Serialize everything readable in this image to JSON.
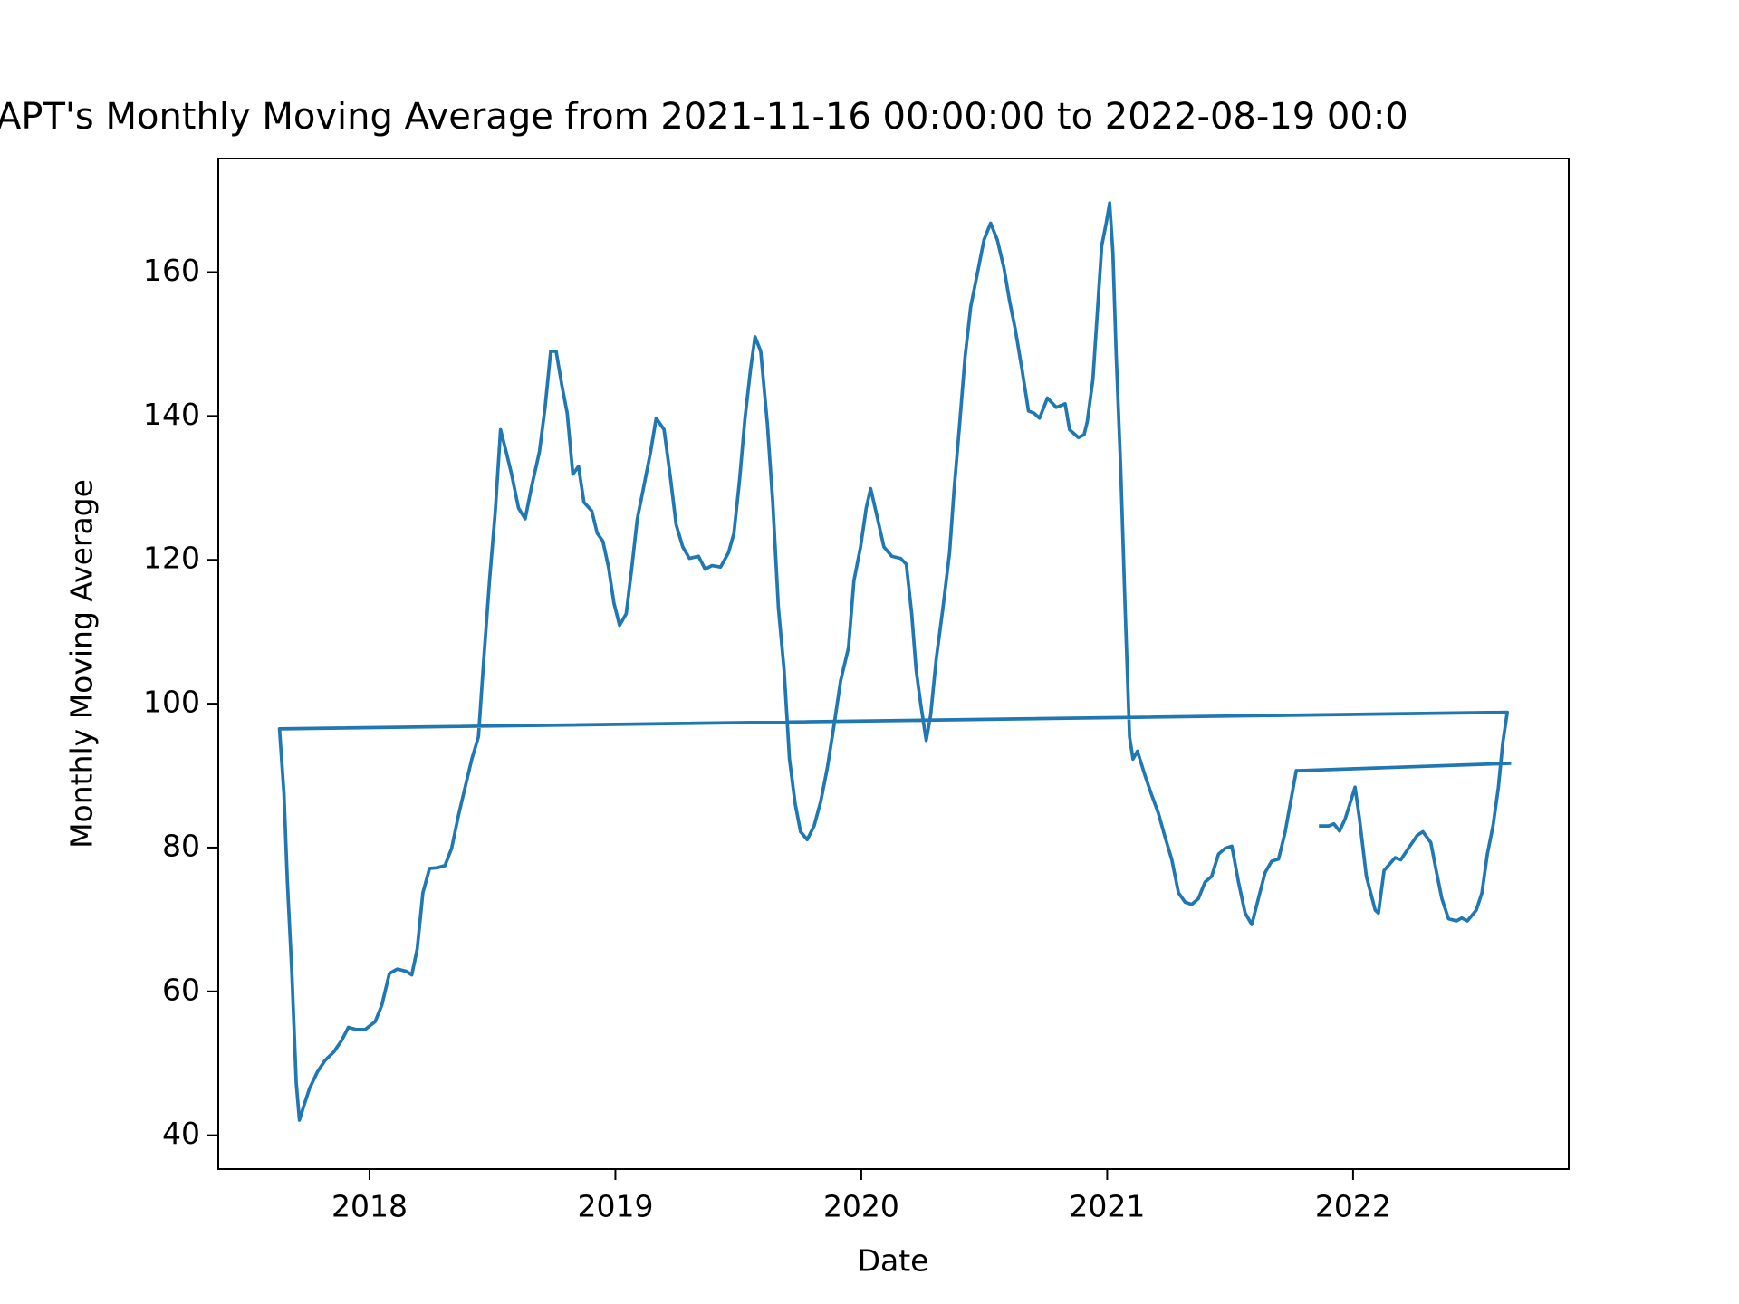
{
  "chart_data": {
    "type": "line",
    "title": "APT's Monthly Moving Average from 2021-11-16 00:00:00 to 2022-08-19 00:0",
    "xlabel": "Date",
    "ylabel": "Monthly Moving Average",
    "color": "#1f77b4",
    "x": [
      2021.868,
      2021.9,
      2021.922,
      2021.945,
      2021.968,
      2021.99,
      2022.008,
      2022.026,
      2022.054,
      2022.09,
      2022.103,
      2022.126,
      2022.171,
      2022.194,
      2022.225,
      2022.261,
      2022.284,
      2022.316,
      2022.338,
      2022.361,
      2022.388,
      2022.42,
      2022.442,
      2022.465,
      2022.501,
      2022.524,
      2022.546,
      2022.569,
      2022.591,
      2022.609,
      2022.627,
      2017.634,
      2017.652,
      2017.666,
      2017.684,
      2017.702,
      2017.715,
      2017.733,
      2017.756,
      2017.788,
      2017.819,
      2017.855,
      2017.887,
      2017.914,
      2017.946,
      2017.982,
      2018.023,
      2018.05,
      2018.081,
      2018.113,
      2018.149,
      2018.172,
      2018.194,
      2018.217,
      2018.244,
      2018.276,
      2018.307,
      2018.334,
      2018.362,
      2018.389,
      2018.416,
      2018.443,
      2018.465,
      2018.488,
      2018.511,
      2018.533,
      2018.556,
      2018.578,
      2018.606,
      2018.633,
      2018.66,
      2018.691,
      2018.714,
      2018.737,
      2018.759,
      2018.782,
      2018.804,
      2018.827,
      2018.85,
      2018.872,
      2018.904,
      2018.926,
      2018.949,
      2018.972,
      2018.994,
      2019.017,
      2019.044,
      2019.066,
      2019.089,
      2019.112,
      2019.143,
      2019.166,
      2019.198,
      2019.225,
      2019.247,
      2019.274,
      2019.301,
      2019.338,
      2019.365,
      2019.392,
      2019.428,
      2019.46,
      2019.482,
      2019.505,
      2019.527,
      2019.55,
      2019.568,
      2019.591,
      2019.618,
      2019.64,
      2019.663,
      2019.686,
      2019.708,
      2019.731,
      2019.753,
      2019.78,
      2019.808,
      2019.835,
      2019.862,
      2019.889,
      2019.916,
      2019.948,
      2019.97,
      2019.997,
      2020.02,
      2020.038,
      2020.061,
      2020.092,
      2020.124,
      2020.16,
      2020.183,
      2020.205,
      2020.223,
      2020.241,
      2020.264,
      2020.282,
      2020.305,
      2020.332,
      2020.359,
      2020.377,
      2020.4,
      2020.422,
      2020.445,
      2020.472,
      2020.499,
      2020.526,
      2020.553,
      2020.58,
      2020.603,
      2020.626,
      2020.653,
      2020.68,
      2020.702,
      2020.725,
      2020.757,
      2020.793,
      2020.829,
      2020.847,
      2020.883,
      2020.906,
      2020.919,
      2020.942,
      2020.96,
      2020.978,
      2020.996,
      2021.01,
      2021.023,
      2021.037,
      2021.055,
      2021.073,
      2021.091,
      2021.105,
      2021.123,
      2021.154,
      2021.181,
      2021.208,
      2021.236,
      2021.263,
      2021.29,
      2021.317,
      2021.344,
      2021.371,
      2021.398,
      2021.425,
      2021.453,
      2021.48,
      2021.507,
      2021.534,
      2021.561,
      2021.588,
      2021.615,
      2021.642,
      2021.669,
      2021.697,
      2021.724,
      2021.751,
      2021.769,
      2021.787,
      2022.636
    ],
    "values": [
      83,
      83,
      83.3,
      82.3,
      84,
      86.4,
      88.4,
      84,
      76,
      71.3,
      70.9,
      76.8,
      78.6,
      78.3,
      79.9,
      81.7,
      82.2,
      80.7,
      76.8,
      72.9,
      70.1,
      69.8,
      70.2,
      69.8,
      71.3,
      73.7,
      79.1,
      83,
      88.4,
      94.6,
      98.8,
      96.5,
      87.6,
      75.2,
      62.8,
      47.3,
      42.1,
      44.1,
      46.5,
      48.8,
      50.4,
      51.6,
      53.2,
      55,
      54.7,
      54.7,
      55.8,
      58.1,
      62.5,
      63.1,
      62.8,
      62.3,
      65.9,
      73.7,
      77.1,
      77.2,
      77.5,
      79.9,
      84.5,
      88.4,
      92.3,
      95.4,
      106.3,
      117.1,
      126.5,
      138.1,
      135,
      131.9,
      127.2,
      125.7,
      130.3,
      135,
      141.2,
      149,
      149,
      144.3,
      140.4,
      131.9,
      133,
      128,
      126.8,
      123.7,
      122.6,
      119,
      114,
      110.9,
      112.5,
      118.7,
      125.7,
      129.6,
      135,
      139.7,
      138.1,
      131.1,
      124.9,
      121.8,
      120.2,
      120.5,
      118.7,
      119.2,
      119,
      121,
      123.7,
      131.1,
      139.7,
      146.6,
      151,
      149,
      138.9,
      128,
      113.3,
      104.7,
      92.3,
      86.1,
      82.2,
      81.1,
      83,
      86.4,
      91.1,
      97,
      103.2,
      107.8,
      117.1,
      121.8,
      127.2,
      129.9,
      126.5,
      121.8,
      120.5,
      120.2,
      119.4,
      112.5,
      104.7,
      100.1,
      94.9,
      98.4,
      106.3,
      113.3,
      121,
      129.6,
      138.9,
      148.2,
      155.2,
      159.8,
      164.5,
      166.8,
      164.5,
      160.6,
      156,
      152.1,
      146.6,
      140.7,
      140.4,
      139.7,
      142.5,
      141.2,
      141.7,
      138.1,
      137,
      137.4,
      139.2,
      145.1,
      154.4,
      163.7,
      166.8,
      169.6,
      162.9,
      148.2,
      132.7,
      113.3,
      95.4,
      92.3,
      93.4,
      90,
      87.3,
      84.8,
      81.4,
      78.3,
      73.7,
      72.4,
      72.1,
      72.9,
      75.2,
      76,
      79.1,
      79.9,
      80.2,
      75.2,
      70.9,
      69.3,
      72.9,
      76.5,
      78.1,
      78.4,
      82.2,
      87.3,
      90.7,
      90.7,
      91.7
    ],
    "xlim": [
      2017.385,
      2022.877
    ],
    "ylim": [
      35.3,
      175.8
    ],
    "xticks": [
      2018,
      2019,
      2020,
      2021,
      2022
    ],
    "yticks": [
      40,
      60,
      80,
      100,
      120,
      140,
      160
    ]
  }
}
